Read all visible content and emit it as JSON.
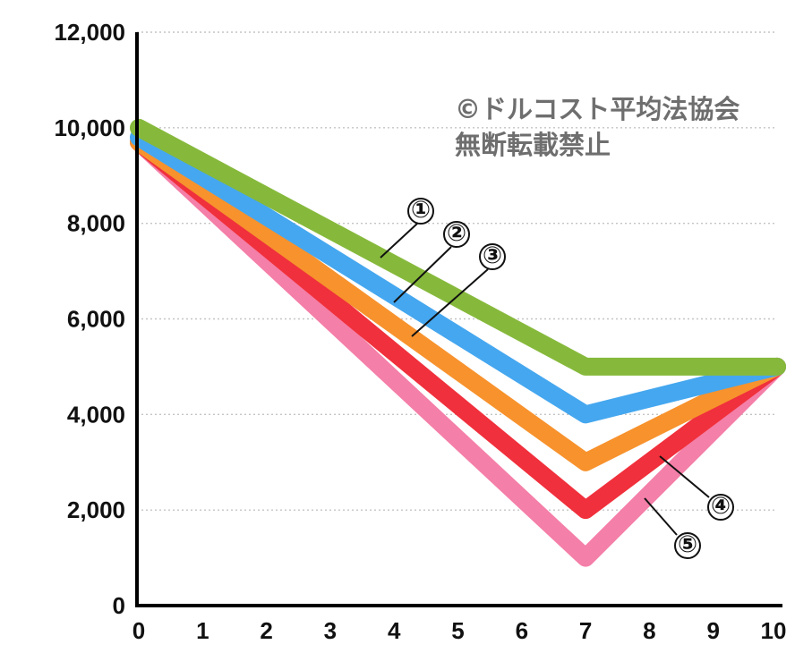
{
  "watermark": {
    "line1": "©ドルコスト平均法協会",
    "line2": "無断転載禁止"
  },
  "chart_data": {
    "type": "line",
    "title": "",
    "xlabel": "",
    "ylabel": "",
    "x": [
      0,
      7,
      10
    ],
    "xlim": [
      0,
      10
    ],
    "ylim": [
      0,
      12000
    ],
    "x_ticks": [
      "0",
      "1",
      "2",
      "3",
      "4",
      "5",
      "6",
      "7",
      "8",
      "9",
      "10"
    ],
    "y_ticks": [
      "0",
      "2,000",
      "4,000",
      "6,000",
      "8,000",
      "10,000",
      "12,000"
    ],
    "grid": true,
    "series": [
      {
        "name": "⑤",
        "values": [
          9700,
          1000,
          5000
        ],
        "color": "#f47fa8"
      },
      {
        "name": "④",
        "values": [
          9700,
          2000,
          5000
        ],
        "color": "#f0303c"
      },
      {
        "name": "③",
        "values": [
          9700,
          3000,
          5000
        ],
        "color": "#f7922d"
      },
      {
        "name": "②",
        "values": [
          9800,
          4000,
          5000
        ],
        "color": "#45a7ef"
      },
      {
        "name": "①",
        "values": [
          10000,
          5000,
          5000
        ],
        "color": "#86b93b"
      }
    ]
  }
}
